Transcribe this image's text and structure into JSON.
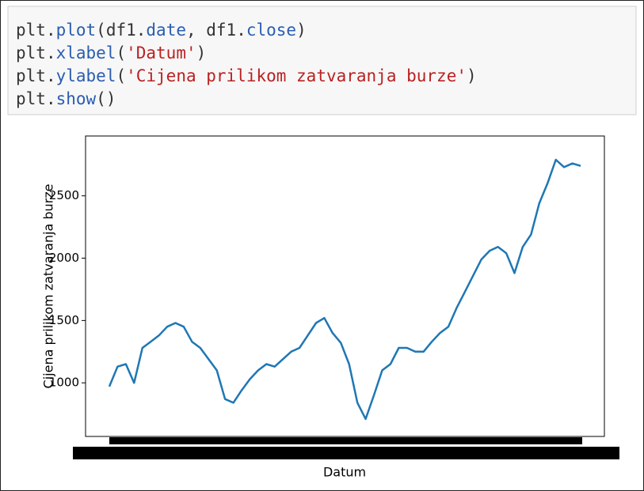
{
  "code": {
    "lines": [
      "plt.plot(df1.date, df1.close)",
      "plt.xlabel('Datum')",
      "plt.ylabel('Cijena prilikom zatvaranja burze')",
      "plt.show()"
    ]
  },
  "chart_data": {
    "type": "line",
    "xlabel": "Datum",
    "ylabel": "Cijena prilikom zatvaranja burze",
    "categories": [
      null,
      null,
      null,
      null,
      null,
      null,
      null,
      null,
      null,
      null,
      null,
      null,
      null,
      null,
      null,
      null,
      null,
      null,
      null,
      null,
      null,
      null,
      null,
      null,
      null,
      null,
      null,
      null,
      null,
      null,
      null,
      null,
      null,
      null,
      null,
      null,
      null,
      null,
      null,
      null,
      null,
      null,
      null,
      null,
      null,
      null,
      null,
      null,
      null,
      null,
      null,
      null,
      null,
      null,
      null,
      null,
      null,
      null
    ],
    "series": [
      {
        "name": "close",
        "color": "#1f77b4",
        "values": [
          970,
          1130,
          1150,
          1000,
          1280,
          1330,
          1380,
          1450,
          1480,
          1450,
          1330,
          1280,
          1190,
          1100,
          870,
          840,
          940,
          1030,
          1100,
          1150,
          1130,
          1190,
          1250,
          1280,
          1380,
          1480,
          1520,
          1400,
          1320,
          1150,
          840,
          710,
          900,
          1100,
          1150,
          1280,
          1280,
          1250,
          1250,
          1330,
          1400,
          1450,
          1600,
          1730,
          1860,
          1990,
          2060,
          2090,
          2040,
          1880,
          2090,
          2190,
          2440,
          2600,
          2790,
          2730,
          2760,
          2740
        ]
      }
    ],
    "ylim": [
      570,
      2980
    ],
    "yticks": [
      1000,
      1500,
      2000,
      2500
    ]
  }
}
